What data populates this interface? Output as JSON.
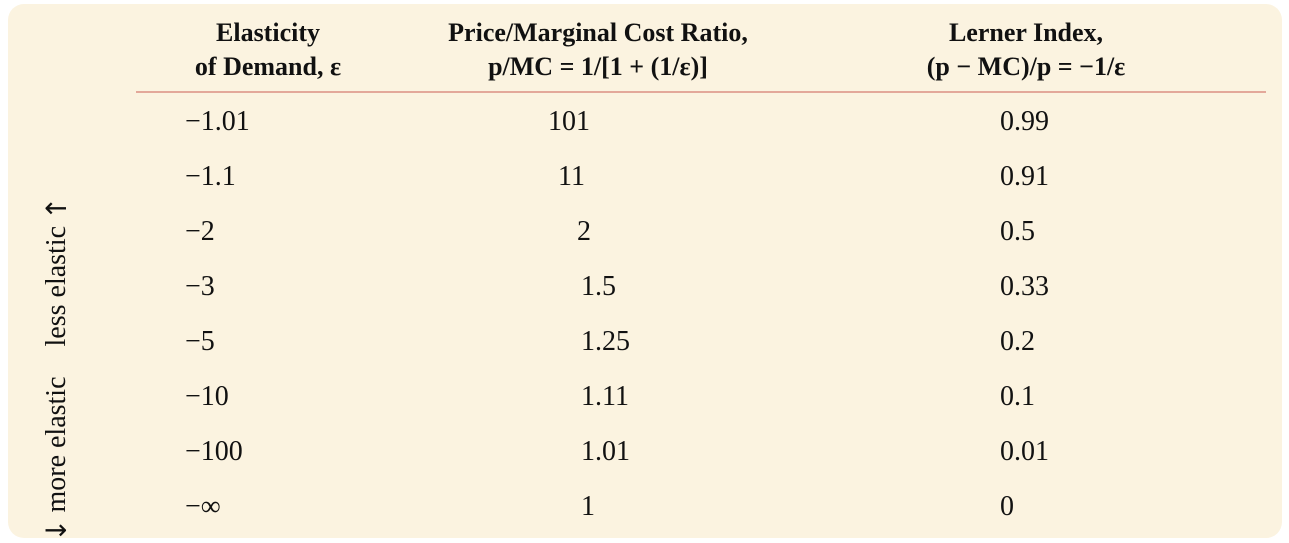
{
  "headers": {
    "elasticity": [
      "Elasticity",
      "of Demand, ε"
    ],
    "ratio": [
      "Price/Marginal Cost Ratio,",
      "p/MC = 1/[1 + (1/ε)]"
    ],
    "lerner": [
      "Lerner Index,",
      "(p − MC)/p = −1/ε"
    ]
  },
  "side_label": {
    "more": "more elastic",
    "less": "less elastic",
    "arrow_down": "↓",
    "arrow_up": "↑"
  },
  "rows": [
    {
      "elasticity": "−1.01",
      "ratio": "101",
      "lerner": "0.99"
    },
    {
      "elasticity": "−1.1",
      "ratio": "11",
      "lerner": "0.91"
    },
    {
      "elasticity": "−2",
      "ratio": "2",
      "lerner": "0.5"
    },
    {
      "elasticity": "−3",
      "ratio": "1.5",
      "lerner": "0.33"
    },
    {
      "elasticity": "−5",
      "ratio": "1.25",
      "lerner": "0.2"
    },
    {
      "elasticity": "−10",
      "ratio": "1.11",
      "lerner": "0.1"
    },
    {
      "elasticity": "−100",
      "ratio": "1.01",
      "lerner": "0.01"
    },
    {
      "elasticity": "−∞",
      "ratio": "1",
      "lerner": "0"
    }
  ],
  "colors": {
    "panel_background": "#fbf3e0",
    "header_rule": "#e3a89a",
    "text": "#111111"
  }
}
